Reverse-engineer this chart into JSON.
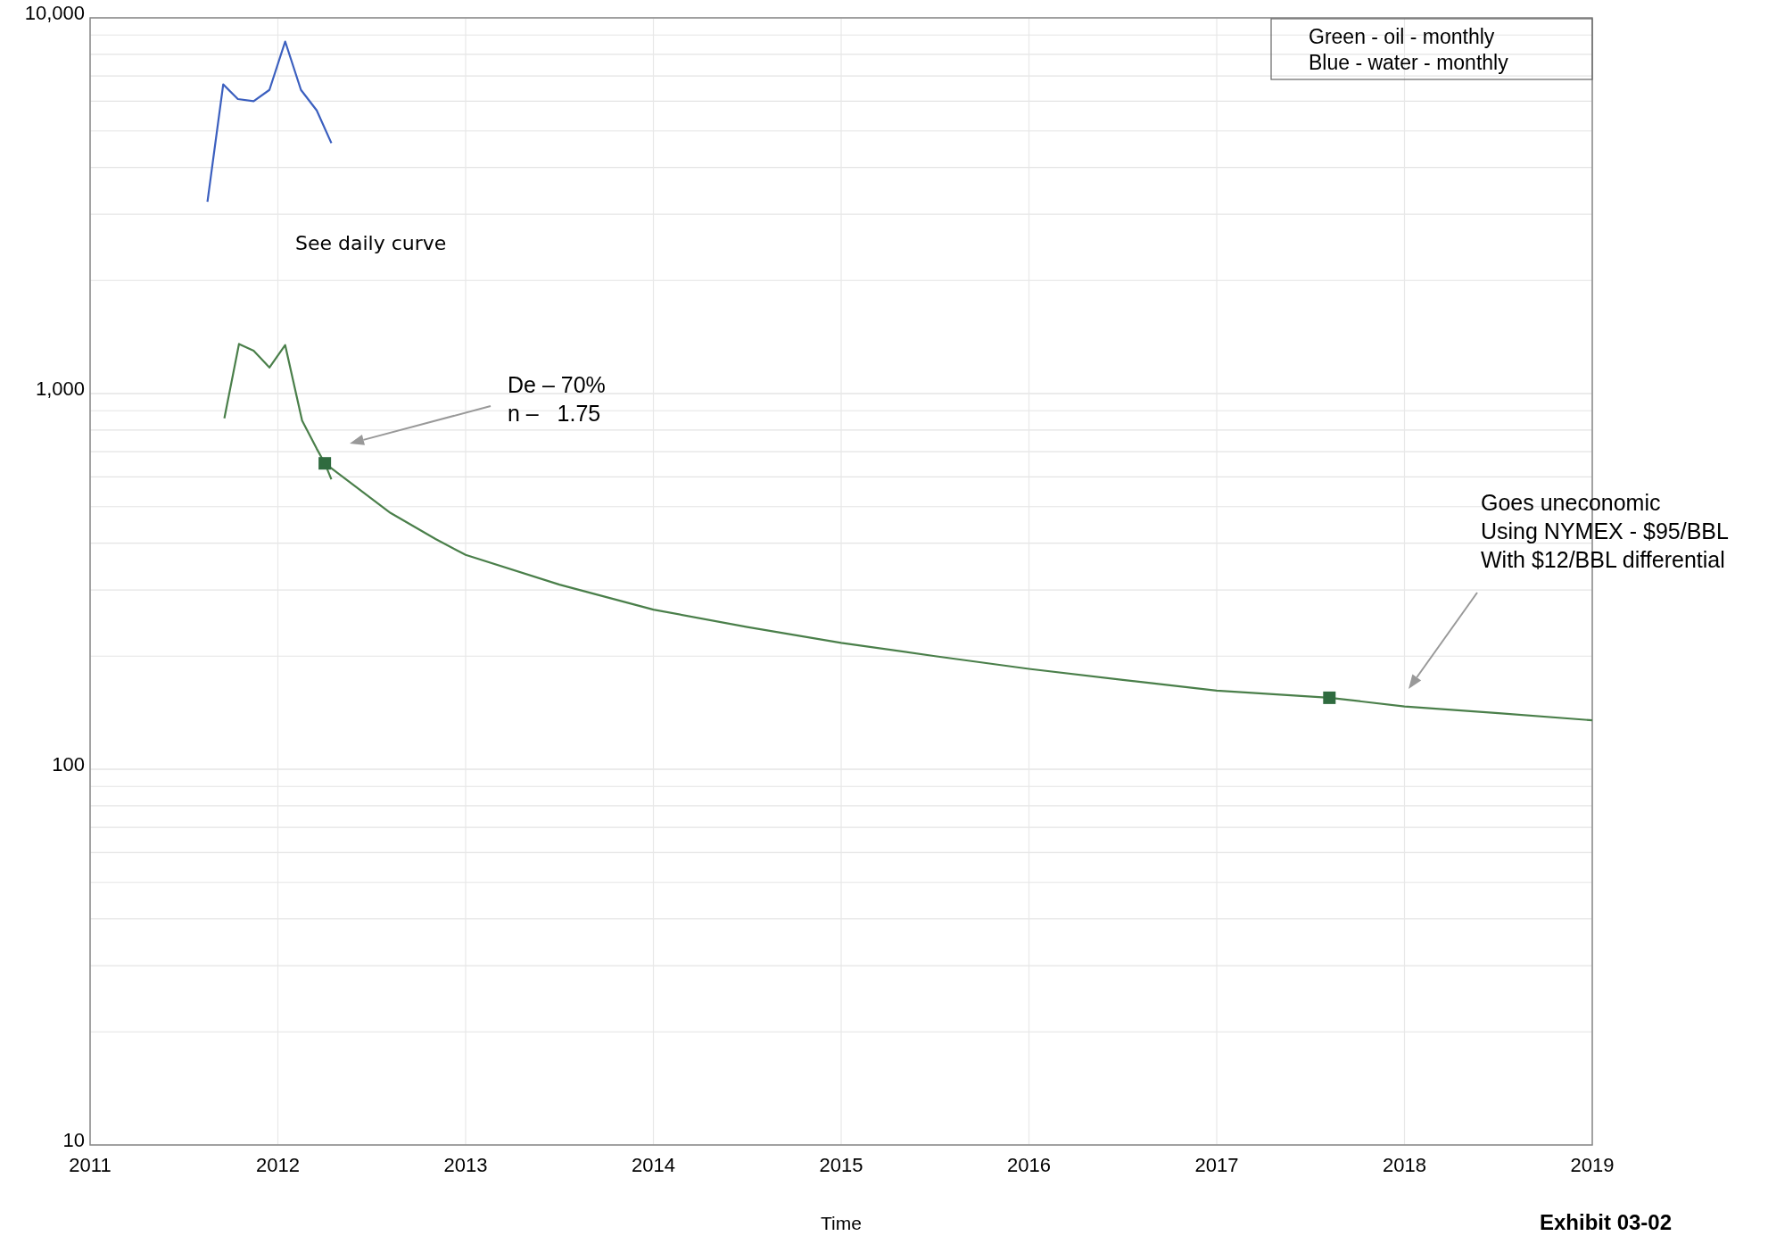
{
  "chart_data": {
    "type": "line",
    "xlabel": "Time",
    "log": "y",
    "grid": true,
    "xlim": [
      2011,
      2019
    ],
    "xticks": [
      2011,
      2012,
      2013,
      2014,
      2015,
      2016,
      2017,
      2018,
      2019
    ],
    "ylim": [
      10,
      10000
    ],
    "yticks": [
      {
        "value": 10,
        "label": "10"
      },
      {
        "value": 100,
        "label": "100"
      },
      {
        "value": 1000,
        "label": "1,000"
      },
      {
        "value": 10000,
        "label": "10,000"
      }
    ],
    "series": [
      {
        "color": "#3b5fbf",
        "x": [
          2011.625,
          2011.709,
          2011.787,
          2011.871,
          2011.955,
          2012.039,
          2012.123,
          2012.207,
          2012.285
        ],
        "values": [
          3240,
          6650,
          6080,
          6000,
          6430,
          8650,
          6430,
          5670,
          4640
        ]
      },
      {
        "color": "#4a7f4a",
        "x": [
          2011.715,
          2011.793,
          2011.871,
          2011.955,
          2012.039,
          2012.129,
          2012.207,
          2012.25,
          2012.285
        ],
        "values": [
          859,
          1355,
          1300,
          1173,
          1346,
          847,
          713,
          652,
          591
        ]
      },
      {
        "color": "#4a7f4a",
        "x": [
          2012.25,
          2012.6,
          2012.84,
          2013,
          2013.5,
          2014,
          2014.5,
          2015,
          2015.5,
          2016,
          2016.5,
          2017,
          2017.6,
          2018,
          2018.5,
          2019
        ],
        "values": [
          652,
          481,
          410,
          372,
          310,
          266,
          239,
          217,
          200,
          185,
          173,
          162,
          155,
          147,
          141,
          135
        ]
      },
      {
        "type": "scatter",
        "marker": "square",
        "color": "#2f6b3f",
        "x": [
          2012.25,
          2017.6
        ],
        "values": [
          652,
          155
        ]
      }
    ],
    "annotations": [
      "See daily curve",
      "De – 70%\nn –   1.75",
      "Goes uneconomic\nUsing NYMEX - $95/BBL\nWith $12/BBL differential",
      "Green - oil - monthly\nBlue - water - monthly",
      "Exhibit 03-02"
    ]
  }
}
